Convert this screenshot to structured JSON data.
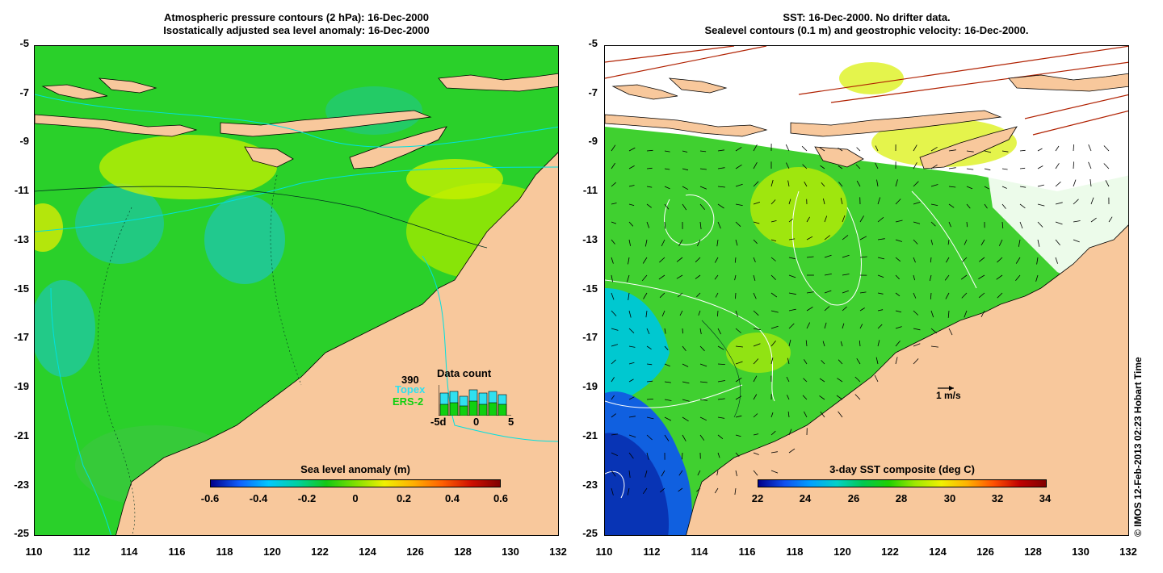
{
  "left_panel": {
    "title_line1": "Atmospheric pressure contours (2 hPa): 16-Dec-2000",
    "title_line2": "Isostatically adjusted sea level anomaly: 16-Dec-2000",
    "colorbar_label": "Sea level anomaly (m)",
    "colorbar_ticks": [
      "-0.6",
      "-0.4",
      "-0.2",
      "0",
      "0.2",
      "0.4",
      "0.6"
    ],
    "data_count": {
      "title": "Data count",
      "max_label": "390",
      "topex_label": "Topex",
      "ers2_label": "ERS-2",
      "x_ticks": [
        "-5d",
        "0",
        "5"
      ],
      "topex_color": "#30e0f0",
      "ers2_color": "#10d010"
    }
  },
  "right_panel": {
    "title_line1": "SST: 16-Dec-2000. No drifter data.",
    "title_line2": "Sealevel contours (0.1 m) and geostrophic velocity: 16-Dec-2000.",
    "colorbar_label": "3-day SST composite (deg C)",
    "colorbar_ticks": [
      "22",
      "24",
      "26",
      "28",
      "30",
      "32",
      "34"
    ],
    "velocity_scale_label": "1 m/s"
  },
  "axes": {
    "y_ticks": [
      "-5",
      "-7",
      "-9",
      "-11",
      "-13",
      "-15",
      "-17",
      "-19",
      "-21",
      "-23",
      "-25"
    ],
    "x_ticks": [
      "110",
      "112",
      "114",
      "116",
      "118",
      "120",
      "122",
      "124",
      "126",
      "128",
      "130",
      "132"
    ],
    "lat_range": [
      -25,
      -5
    ],
    "lon_range": [
      110,
      132
    ]
  },
  "copyright": "© IMOS 12-Feb-2013 02:23 Hobart Time",
  "colors": {
    "land": "#f8c89c",
    "ocean_left": "#2ad02a",
    "ocean_right": "#40d030",
    "no_data": "#ffffff"
  }
}
